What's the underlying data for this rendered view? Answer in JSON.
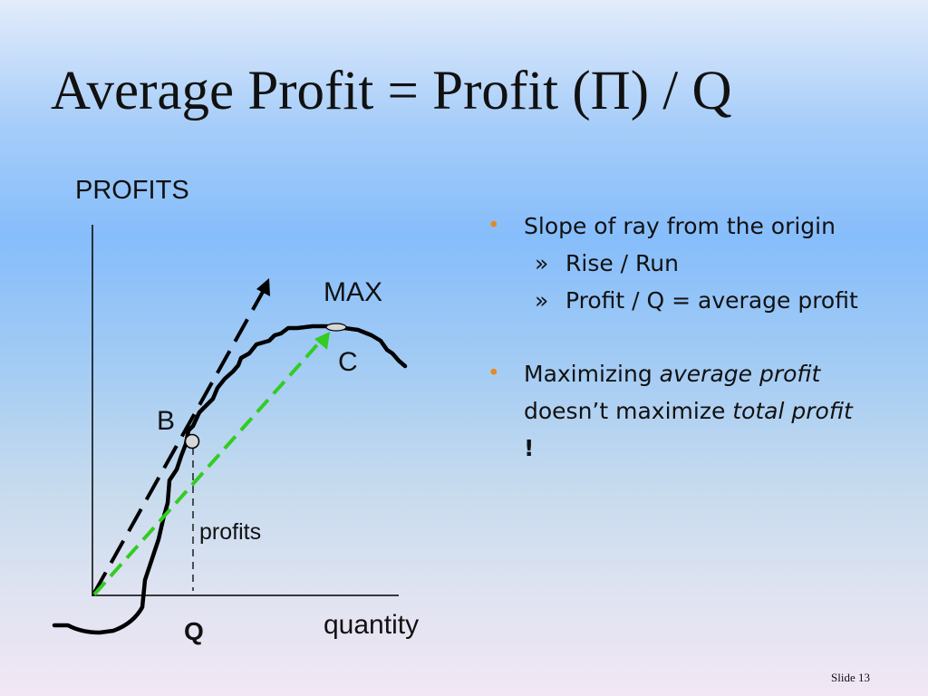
{
  "title": "Average Profit = Profit (Π)  /  Q",
  "diagram": {
    "y_axis_label": "PROFITS",
    "x_axis_label": "quantity",
    "label_max": "MAX",
    "label_c": "C",
    "label_b": "B",
    "label_profits": "profits",
    "label_q": "Q",
    "colors": {
      "curve": "#000000",
      "ray_to_b": "#000000",
      "ray_to_c": "#33cc22",
      "point_fill": "#d8d8d8"
    }
  },
  "bullets": [
    {
      "text": "Slope of ray from the origin",
      "subs": [
        {
          "text": "Rise / Run"
        },
        {
          "text": "Profit / Q = average profit"
        }
      ]
    },
    {
      "parts": [
        {
          "text": "Maximizing "
        },
        {
          "text": "average profit",
          "em": true
        },
        {
          "text": " doesn’t maximize "
        },
        {
          "text": "total profit",
          "em": true
        },
        {
          "text": " !",
          "strong": true
        }
      ]
    }
  ],
  "bullet_marker": "•",
  "sub_marker": "»",
  "footer": {
    "slide_number": "Slide 13"
  }
}
